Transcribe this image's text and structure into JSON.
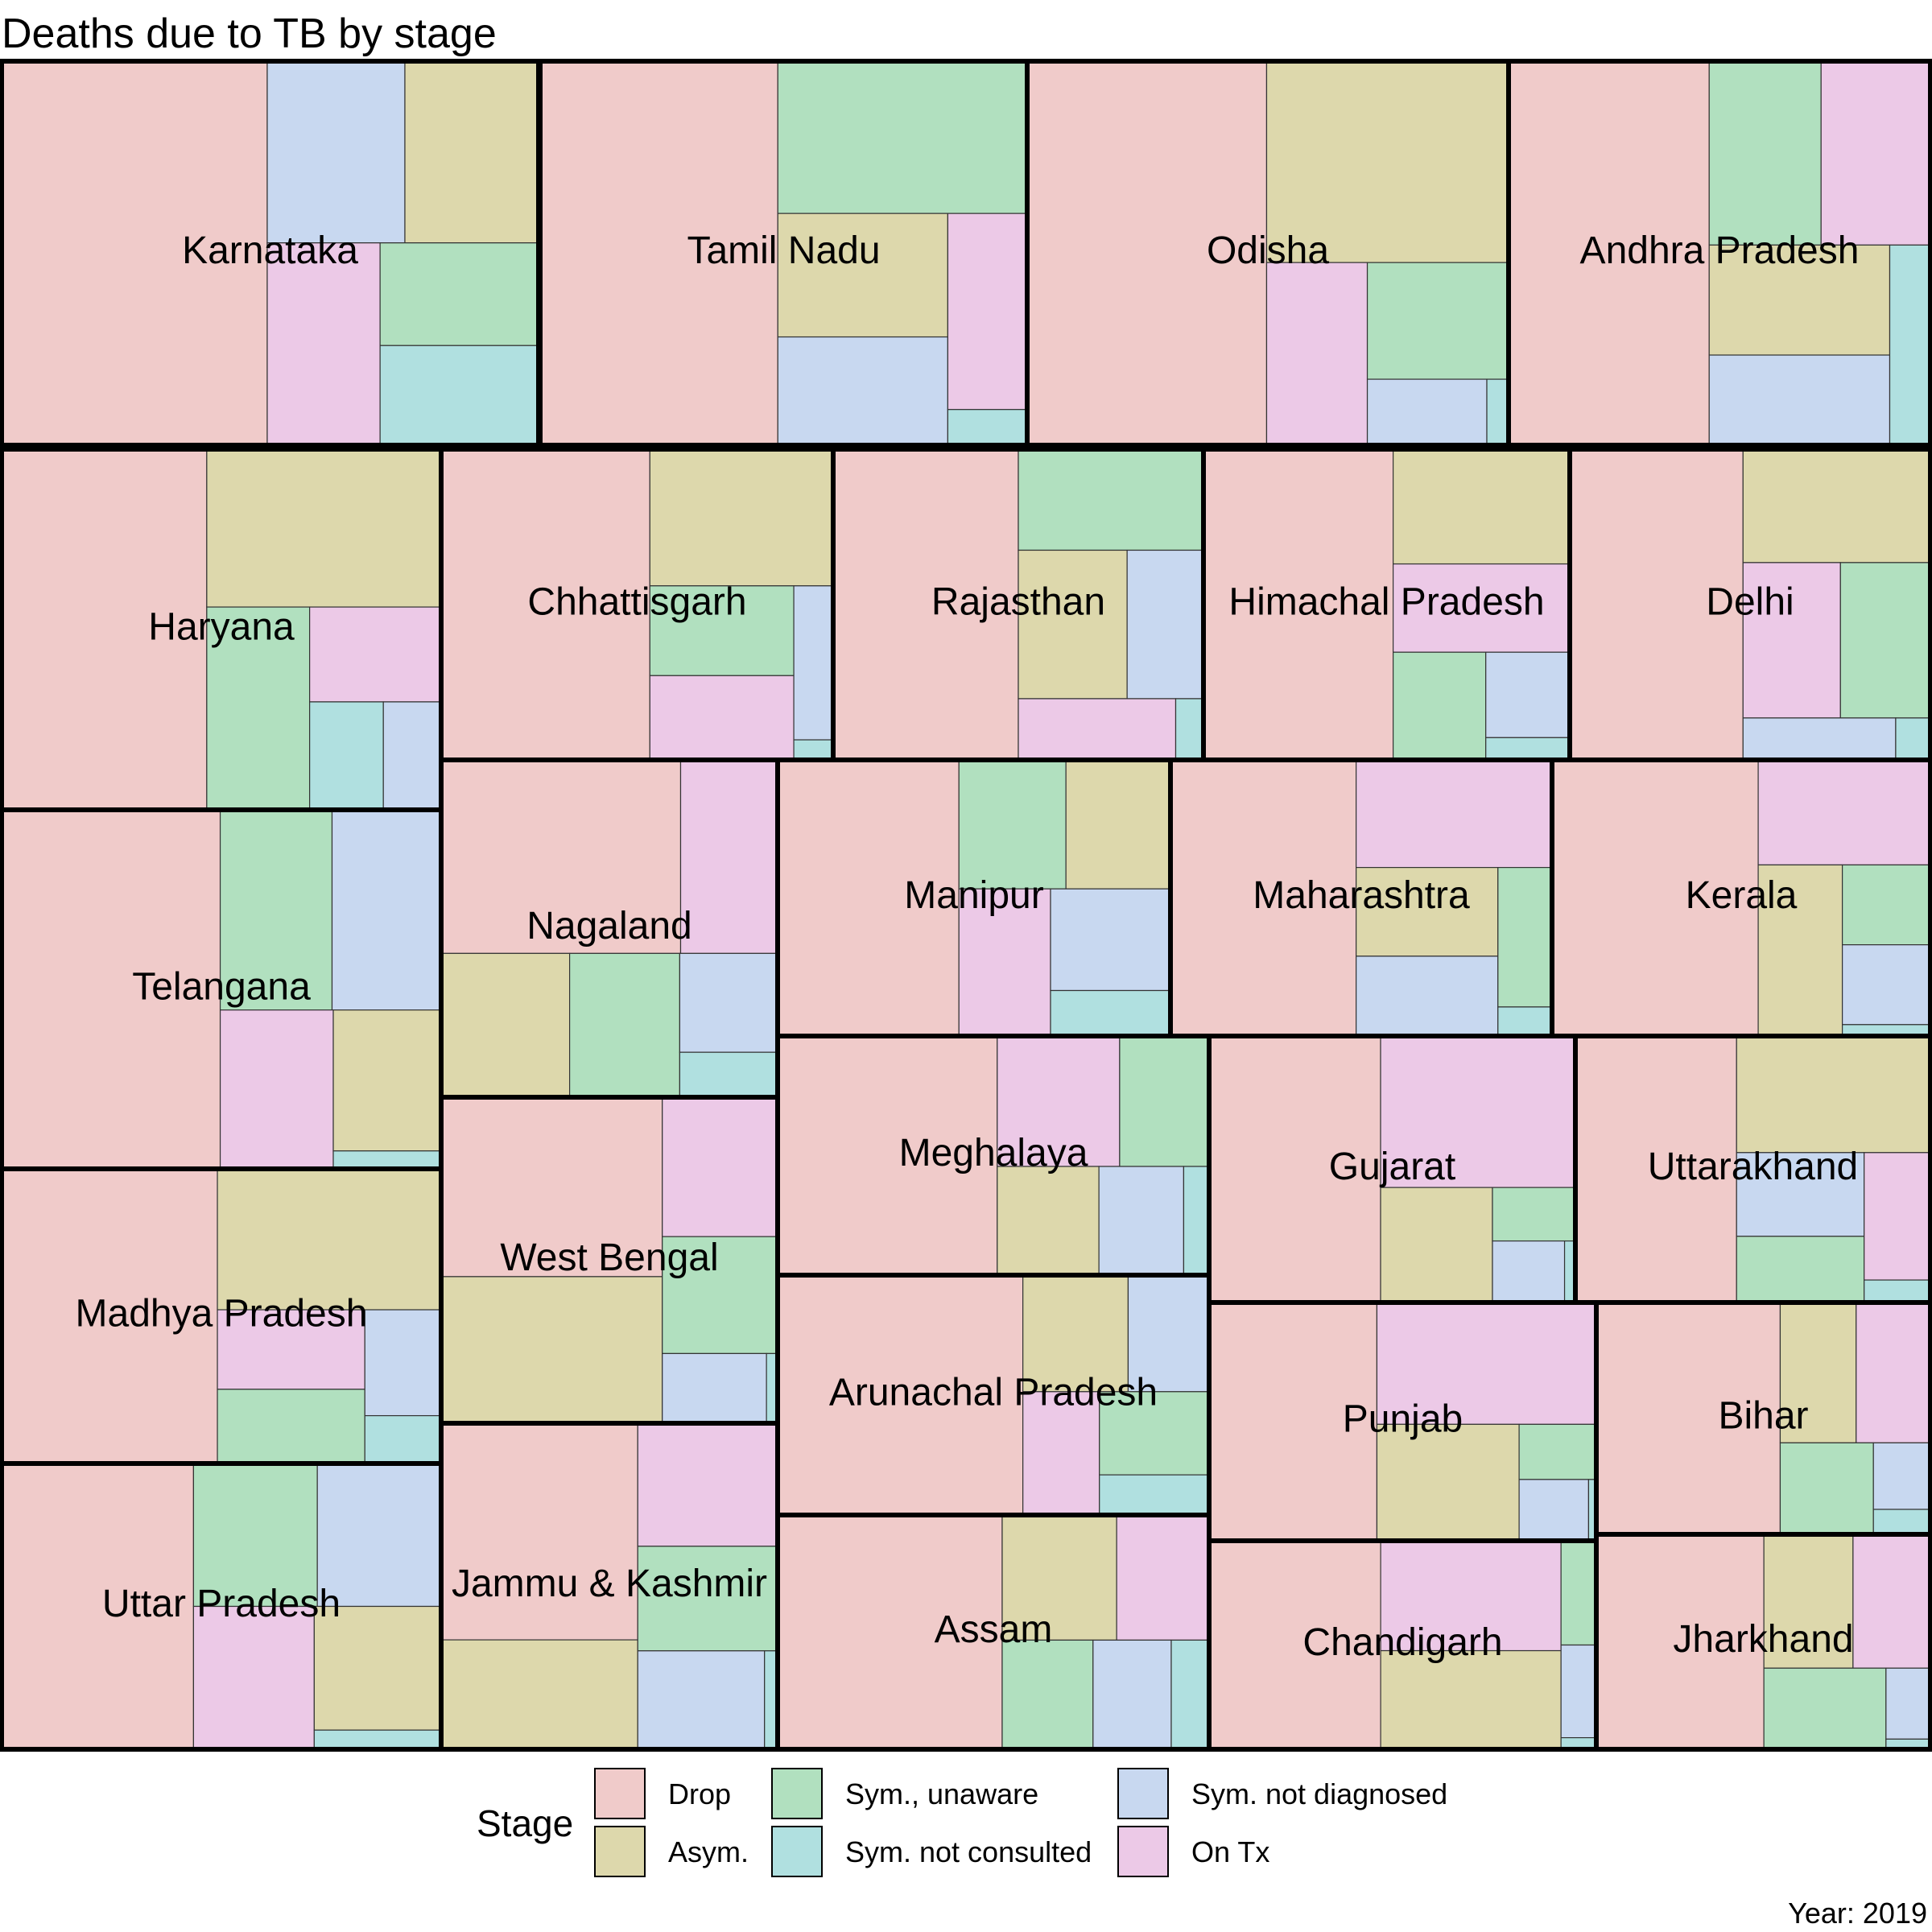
{
  "chart_data": {
    "type": "treemap",
    "title": "Deaths due to TB by stage",
    "caption": "Year: 2019",
    "legend": {
      "title": "Stage",
      "position": "bottom",
      "entries": [
        {
          "name": "Drop",
          "color": "#F0CBCA"
        },
        {
          "name": "Asym.",
          "color": "#DDD8AC"
        },
        {
          "name": "Sym., unaware",
          "color": "#B1E0BF"
        },
        {
          "name": "Sym. not consulted",
          "color": "#B0E0E0"
        },
        {
          "name": "Sym. not diagnosed",
          "color": "#C8D8F0"
        },
        {
          "name": "On Tx",
          "color": "#ECC9E7"
        }
      ]
    },
    "layout_note_values": "relative area per state and stage, estimated from treemap tile areas",
    "states": [
      {
        "name": "Karnataka",
        "values": {
          "Drop": 42,
          "Asym.": 10,
          "Sym., unaware": 6.7,
          "Sym. not consulted": 6.5,
          "Sym. not diagnosed": 10.3,
          "On Tx": 9.4
        }
      },
      {
        "name": "Tamil Nadu",
        "values": {
          "Drop": 38.7,
          "Asym.": 8.9,
          "Sym., unaware": 16.1,
          "Sym. not consulted": 1.2,
          "Sym. not diagnosed": 7.8,
          "On Tx": 6.6
        }
      },
      {
        "name": "Odisha",
        "values": {
          "Drop": 38.5,
          "Asym.": 20.4,
          "Sym., unaware": 6.9,
          "Sym. not consulted": 0.6,
          "Sym. not diagnosed": 3.3,
          "On Tx": 7.7
        }
      },
      {
        "name": "Andhra Pradesh",
        "values": {
          "Drop": 32.2,
          "Asym.": 8.3,
          "Sym., unaware": 8.6,
          "Sym. not consulted": 3.4,
          "Sym. not diagnosed": 6.8,
          "On Tx": 8.4
        }
      },
      {
        "name": "Haryana",
        "values": {
          "Drop": 34.4,
          "Asym.": 17.2,
          "Sym., unaware": 9.7,
          "Sym. not consulted": 3.7,
          "Sym. not diagnosed": 2.9,
          "On Tx": 5.8
        }
      },
      {
        "name": "Chhattisgarh",
        "values": {
          "Drop": 24.6,
          "Asym.": 9.5,
          "Sym., unaware": 4.9,
          "Sym. not consulted": 0.3,
          "Sym. not diagnosed": 2.3,
          "On Tx": 4.6
        }
      },
      {
        "name": "Rajasthan",
        "values": {
          "Drop": 20.3,
          "Asym.": 5.7,
          "Sym., unaware": 6.6,
          "Sym. not consulted": 0.6,
          "Sym. not diagnosed": 4.0,
          "On Tx": 3.4
        }
      },
      {
        "name": "Himachal Pradesh",
        "values": {
          "Drop": 18.9,
          "Asym.": 6.5,
          "Sym., unaware": 3.2,
          "Sym. not consulted": 0.6,
          "Sym. not diagnosed": 2.3,
          "On Tx": 5.0
        }
      },
      {
        "name": "Delhi",
        "values": {
          "Drop": 18.5,
          "Asym.": 7.3,
          "Sym., unaware": 4.8,
          "Sym. not consulted": 0.5,
          "Sym. not diagnosed": 2.2,
          "On Tx": 5.2
        }
      },
      {
        "name": "Telangana",
        "values": {
          "Drop": 28.4,
          "Asym.": 5.5,
          "Sym., unaware": 8.1,
          "Sym. not consulted": 0.7,
          "Sym. not diagnosed": 7.9,
          "On Tx": 6.5
        }
      },
      {
        "name": "Nagaland",
        "values": {
          "Drop": 15.8,
          "Asym.": 6.3,
          "Sym., unaware": 5.4,
          "Sym. not consulted": 1.5,
          "Sym. not diagnosed": 3.3,
          "On Tx": 6.4
        }
      },
      {
        "name": "Manipur",
        "values": {
          "Drop": 15.6,
          "Asym.": 4.2,
          "Sym., unaware": 4.3,
          "Sym. not consulted": 1.7,
          "Sym. not diagnosed": 3.8,
          "On Tx": 4.2
        }
      },
      {
        "name": "Maharashtra",
        "values": {
          "Drop": 16.3,
          "Asym.": 4.0,
          "Sym., unaware": 2.4,
          "Sym. not consulted": 0.5,
          "Sym. not diagnosed": 3.6,
          "On Tx": 6.7
        }
      },
      {
        "name": "Kerala",
        "values": {
          "Drop": 17.0,
          "Asym.": 4.3,
          "Sym., unaware": 2.1,
          "Sym. not consulted": 0.3,
          "Sym. not diagnosed": 2.1,
          "On Tx": 5.4
        }
      },
      {
        "name": "Madhya Pradesh",
        "values": {
          "Drop": 24.4,
          "Asym.": 12.1,
          "Sym., unaware": 4.2,
          "Sym. not consulted": 1.4,
          "Sym. not diagnosed": 3.1,
          "On Tx": 4.5
        }
      },
      {
        "name": "West Bengal",
        "values": {
          "Drop": 15.3,
          "Asym.": 12.5,
          "Sym., unaware": 5.2,
          "Sym. not consulted": 0.3,
          "Sym. not diagnosed": 2.8,
          "On Tx": 6.2
        }
      },
      {
        "name": "Meghalaya",
        "values": {
          "Drop": 17.1,
          "Asym.": 3.6,
          "Sym., unaware": 3.8,
          "Sym. not consulted": 0.9,
          "Sym. not diagnosed": 3.0,
          "On Tx": 5.2
        }
      },
      {
        "name": "Arunachal Pradesh",
        "values": {
          "Drop": 18.7,
          "Asym.": 3.9,
          "Sym., unaware": 2.9,
          "Sym. not consulted": 1.4,
          "Sym. not diagnosed": 3.0,
          "On Tx": 3.0
        }
      },
      {
        "name": "Assam",
        "values": {
          "Drop": 19.1,
          "Asym.": 5.2,
          "Sym., unaware": 3.6,
          "Sym. not consulted": 1.5,
          "Sym. not diagnosed": 3.1,
          "On Tx": 4.2
        }
      },
      {
        "name": "Uttar Pradesh",
        "values": {
          "Drop": 24.8,
          "Asym.": 7.1,
          "Sym., unaware": 8.0,
          "Sym. not consulted": 1.1,
          "Sym. not diagnosed": 8.0,
          "On Tx": 7.8
        }
      },
      {
        "name": "Jammu & Kashmir",
        "values": {
          "Drop": 19.8,
          "Asym.": 10.0,
          "Sym., unaware": 6.8,
          "Sym. not consulted": 0.6,
          "Sym. not diagnosed": 5.8,
          "On Tx": 8.0
        }
      },
      {
        "name": "Gujarat",
        "values": {
          "Drop": 20.6,
          "Asym.": 5.8,
          "Sym., unaware": 2.0,
          "Sym. not consulted": 0.3,
          "Sym. not diagnosed": 2.0,
          "On Tx": 13.3
        }
      },
      {
        "name": "Uttarakhand",
        "values": {
          "Drop": 17.3,
          "Asym.": 9.1,
          "Sym., unaware": 3.4,
          "Sym. not consulted": 0.6,
          "Sym. not diagnosed": 4.3,
          "On Tx": 3.4
        }
      },
      {
        "name": "Punjab",
        "values": {
          "Drop": 16.9,
          "Asym.": 7.0,
          "Sym., unaware": 1.8,
          "Sym. not consulted": 0.2,
          "Sym. not diagnosed": 1.8,
          "On Tx": 11.3
        }
      },
      {
        "name": "Bihar",
        "values": {
          "Drop": 18.0,
          "Asym.": 4.5,
          "Sym., unaware": 3.6,
          "Sym. not consulted": 0.6,
          "Sym. not diagnosed": 1.6,
          "On Tx": 4.4
        }
      },
      {
        "name": "Chandigarh",
        "values": {
          "Drop": 17.5,
          "Asym.": 8.7,
          "Sym., unaware": 1.8,
          "Sym. not consulted": 0.2,
          "Sym. not diagnosed": 1.6,
          "On Tx": 9.7
        }
      },
      {
        "name": "Jharkhand",
        "values": {
          "Drop": 16.0,
          "Asym.": 5.3,
          "Sym., unaware": 4.4,
          "Sym. not consulted": 0.2,
          "Sym. not diagnosed": 1.4,
          "On Tx": 4.6
        }
      }
    ]
  }
}
